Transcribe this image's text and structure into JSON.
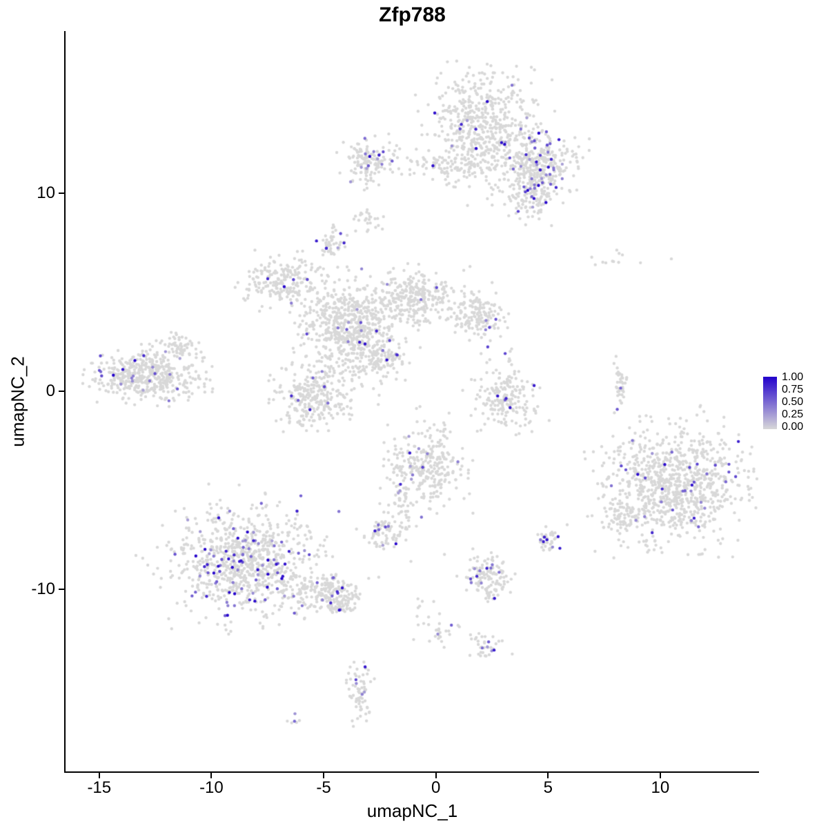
{
  "chart_data": {
    "type": "scatter",
    "title": "Zfp788",
    "xlabel": "umapNC_1",
    "ylabel": "umapNC_2",
    "xlim": [
      -16.5,
      14.4
    ],
    "ylim": [
      -19.2,
      18.2
    ],
    "xticks": [
      -15,
      -10,
      -5,
      0,
      5,
      10
    ],
    "yticks": [
      -10,
      0,
      10
    ],
    "grid": false,
    "point_radius": 2.2,
    "seed": 42,
    "colors": {
      "low": "#D8D8D8",
      "high": "#2200CC",
      "axis": "#000000",
      "background": "#FFFFFF"
    },
    "legend": {
      "position": "right",
      "ticks": [
        "1.00",
        "0.75",
        "0.50",
        "0.25",
        "0.00"
      ]
    },
    "clusters": [
      {
        "name": "top-main",
        "cx": 2.0,
        "cy": 13.4,
        "sx": 1.15,
        "sy": 1.35,
        "n": 560,
        "expr_frac": 0.035
      },
      {
        "name": "top-right-arm",
        "cx": 4.6,
        "cy": 11.6,
        "sx": 0.85,
        "sy": 0.75,
        "n": 300,
        "expr_frac": 0.1
      },
      {
        "name": "top-right-lower",
        "cx": 4.2,
        "cy": 9.8,
        "sx": 0.55,
        "sy": 0.6,
        "n": 130,
        "expr_frac": 0.08
      },
      {
        "name": "top-bridge",
        "cx": 0.2,
        "cy": 11.4,
        "sx": 1.3,
        "sy": 0.35,
        "n": 90,
        "expr_frac": 0.02
      },
      {
        "name": "topleft-small",
        "cx": -2.9,
        "cy": 11.6,
        "sx": 0.55,
        "sy": 0.55,
        "n": 140,
        "expr_frac": 0.06
      },
      {
        "name": "tiny-mid-8",
        "cx": -3.0,
        "cy": 8.7,
        "sx": 0.3,
        "sy": 0.3,
        "n": 25,
        "expr_frac": 0.0
      },
      {
        "name": "dense-mid-7",
        "cx": -4.6,
        "cy": 7.5,
        "sx": 0.28,
        "sy": 0.4,
        "n": 50,
        "expr_frac": 0.16
      },
      {
        "name": "mid-left-upper",
        "cx": -6.7,
        "cy": 5.5,
        "sx": 1.0,
        "sy": 0.55,
        "n": 220,
        "expr_frac": 0.02
      },
      {
        "name": "mid-central",
        "cx": -3.9,
        "cy": 3.3,
        "sx": 1.05,
        "sy": 0.95,
        "n": 560,
        "expr_frac": 0.02
      },
      {
        "name": "mid-right",
        "cx": -1.0,
        "cy": 4.7,
        "sx": 0.95,
        "sy": 0.65,
        "n": 300,
        "expr_frac": 0.01
      },
      {
        "name": "mid-right-knob",
        "cx": 1.8,
        "cy": 3.9,
        "sx": 0.55,
        "sy": 0.55,
        "n": 160,
        "expr_frac": 0.02
      },
      {
        "name": "mid-lower-lobe",
        "cx": -5.4,
        "cy": -0.3,
        "sx": 0.85,
        "sy": 0.75,
        "n": 290,
        "expr_frac": 0.03
      },
      {
        "name": "mid-bridge",
        "cx": -2.6,
        "cy": 1.6,
        "sx": 0.8,
        "sy": 0.55,
        "n": 150,
        "expr_frac": 0.02
      },
      {
        "name": "far-left",
        "cx": -12.8,
        "cy": 0.8,
        "sx": 1.15,
        "sy": 0.62,
        "n": 470,
        "expr_frac": 0.04
      },
      {
        "name": "far-left-tip",
        "cx": -11.4,
        "cy": 2.3,
        "sx": 0.35,
        "sy": 0.3,
        "n": 50,
        "expr_frac": 0.04
      },
      {
        "name": "center-crescent",
        "cx": 3.0,
        "cy": -0.2,
        "sx": 0.7,
        "sy": 0.85,
        "n": 200,
        "expr_frac": 0.03
      },
      {
        "name": "thin-streak",
        "cx": 8.2,
        "cy": 0.4,
        "sx": 0.12,
        "sy": 0.55,
        "n": 40,
        "expr_frac": 0.06
      },
      {
        "name": "sparse-topright",
        "cx": 8.3,
        "cy": 6.7,
        "sx": 1.1,
        "sy": 0.3,
        "n": 12,
        "expr_frac": 0.0
      },
      {
        "name": "right-large",
        "cx": 10.5,
        "cy": -4.7,
        "sx": 1.55,
        "sy": 1.45,
        "n": 900,
        "expr_frac": 0.035
      },
      {
        "name": "right-tail",
        "cx": 8.3,
        "cy": -6.3,
        "sx": 0.4,
        "sy": 0.5,
        "n": 60,
        "expr_frac": 0.02
      },
      {
        "name": "south-center",
        "cx": -0.4,
        "cy": -3.8,
        "sx": 0.8,
        "sy": 0.95,
        "n": 290,
        "expr_frac": 0.05
      },
      {
        "name": "south-center-tail",
        "cx": -1.6,
        "cy": -6.0,
        "sx": 0.3,
        "sy": 0.85,
        "n": 55,
        "expr_frac": 0.02
      },
      {
        "name": "small-left-7",
        "cx": -2.2,
        "cy": -7.2,
        "sx": 0.45,
        "sy": 0.32,
        "n": 65,
        "expr_frac": 0.08
      },
      {
        "name": "bottomleft-large",
        "cx": -8.5,
        "cy": -8.6,
        "sx": 1.5,
        "sy": 1.3,
        "n": 860,
        "expr_frac": 0.12
      },
      {
        "name": "bottomleft-arm",
        "cx": -5.0,
        "cy": -10.2,
        "sx": 0.85,
        "sy": 0.5,
        "n": 200,
        "expr_frac": 0.05
      },
      {
        "name": "bottomleft-tip",
        "cx": -4.3,
        "cy": -10.8,
        "sx": 0.3,
        "sy": 0.25,
        "n": 40,
        "expr_frac": 0.05
      },
      {
        "name": "small-south-2",
        "cx": 2.3,
        "cy": -9.4,
        "sx": 0.5,
        "sy": 0.55,
        "n": 130,
        "expr_frac": 0.07
      },
      {
        "name": "dense-south-5",
        "cx": 5.0,
        "cy": -7.5,
        "sx": 0.22,
        "sy": 0.27,
        "n": 40,
        "expr_frac": 0.22
      },
      {
        "name": "trail-12",
        "cx": 0.3,
        "cy": -12.2,
        "sx": 0.4,
        "sy": 0.35,
        "n": 24,
        "expr_frac": 0.13
      },
      {
        "name": "trail-dots",
        "cx": -0.8,
        "cy": -11.0,
        "sx": 0.25,
        "sy": 0.6,
        "n": 10,
        "expr_frac": 0.0
      },
      {
        "name": "small-south-13",
        "cx": 2.3,
        "cy": -12.9,
        "sx": 0.4,
        "sy": 0.28,
        "n": 35,
        "expr_frac": 0.06
      },
      {
        "name": "vertical-15",
        "cx": -3.4,
        "cy": -15.1,
        "sx": 0.28,
        "sy": 0.75,
        "n": 70,
        "expr_frac": 0.08
      },
      {
        "name": "tiny-16",
        "cx": -6.2,
        "cy": -16.6,
        "sx": 0.18,
        "sy": 0.12,
        "n": 6,
        "expr_frac": 0.3
      }
    ]
  }
}
